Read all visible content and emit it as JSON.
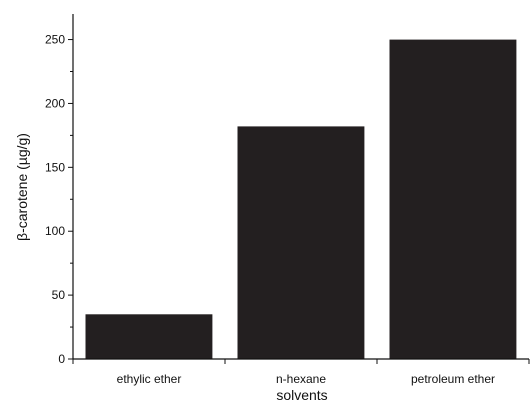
{
  "chart_data": {
    "type": "bar",
    "categories": [
      "ethylic ether",
      "n-hexane",
      "petroleum ether"
    ],
    "values": [
      35,
      182,
      250
    ],
    "xlabel": "solvents",
    "ylabel": "β-carotene (µg/g)",
    "ylim": [
      0,
      270
    ],
    "yticks": [
      0,
      50,
      100,
      150,
      200,
      250
    ],
    "ytick_labels": [
      "0",
      "50",
      "100",
      "150",
      "200",
      "250"
    ],
    "bar_color": "#231f20",
    "grid": false,
    "legend": "none"
  }
}
